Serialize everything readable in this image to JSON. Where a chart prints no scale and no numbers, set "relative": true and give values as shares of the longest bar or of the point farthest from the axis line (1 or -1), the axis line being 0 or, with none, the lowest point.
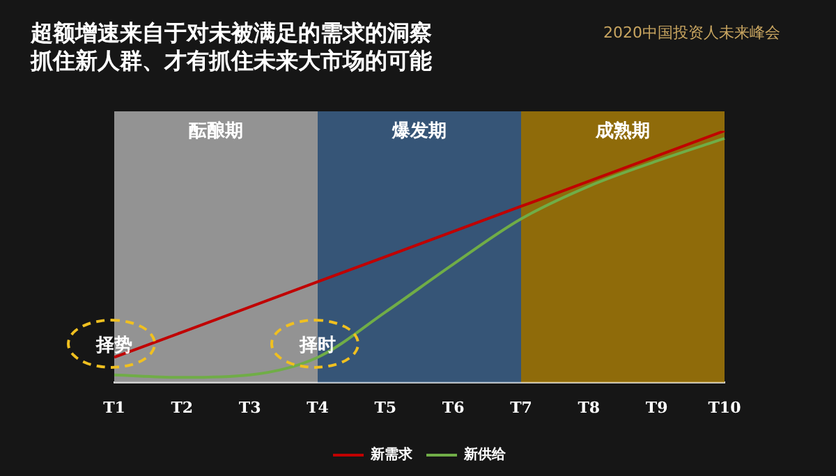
{
  "chart_data": {
    "type": "line",
    "title": "超额增速来自于对未被满足的需求的洞察",
    "subtitle": "抓住新人群、才有抓住未来大市场的可能",
    "categories": [
      "T1",
      "T2",
      "T3",
      "T4",
      "T5",
      "T6",
      "T7",
      "T8",
      "T9",
      "T10"
    ],
    "relative": true,
    "series": [
      {
        "name": "新需求",
        "color": "#c00000",
        "values": [
          0.1,
          0.2,
          0.3,
          0.4,
          0.5,
          0.6,
          0.7,
          0.8,
          0.9,
          1.0
        ]
      },
      {
        "name": "新供给",
        "color": "#70ad47",
        "values": [
          0.03,
          0.02,
          0.03,
          0.1,
          0.28,
          0.47,
          0.65,
          0.78,
          0.88,
          0.97
        ]
      }
    ],
    "bands": [
      {
        "axis": "x",
        "from": "T1",
        "to": "T4",
        "label": "酝酿期",
        "color": "#a9a9a9"
      },
      {
        "axis": "x",
        "from": "T4",
        "to": "T7",
        "label": "爆发期",
        "color": "#3c6088"
      },
      {
        "axis": "x",
        "from": "T7",
        "to": "T10",
        "label": "成熟期",
        "color": "#a47a08"
      }
    ],
    "annotations": [
      "2020中国投资人未来峰会",
      {
        "text": "择势",
        "x": "T1",
        "y": 0.1
      },
      {
        "text": "择时",
        "x": "T4",
        "y": 0.1
      }
    ],
    "marker": "none",
    "legend": "bottom"
  }
}
